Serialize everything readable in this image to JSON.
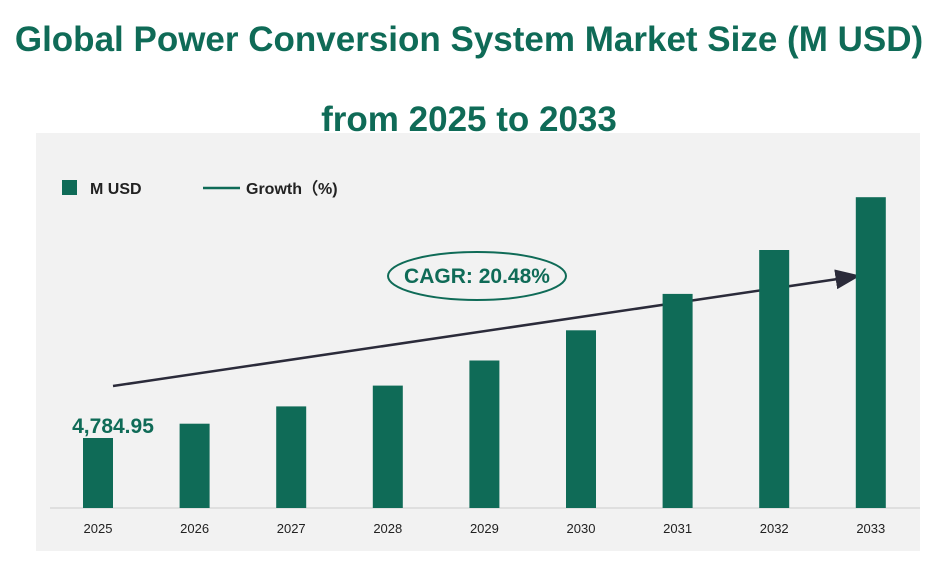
{
  "title": "Global Power Conversion System Market Size (M USD) from 2025 to 2033",
  "legend": {
    "bar_label": "M USD",
    "line_label": "Growth（%)"
  },
  "cagr_label": "CAGR:  20.48%",
  "first_value_label": "4,784.95",
  "colors": {
    "bar": "#0f6b57",
    "title": "#0f6b57",
    "arrow": "#2b2b3a",
    "panel": "#f2f2f2"
  },
  "chart_data": {
    "type": "bar",
    "categories": [
      "2025",
      "2026",
      "2027",
      "2028",
      "2029",
      "2030",
      "2031",
      "2032",
      "2033"
    ],
    "series": [
      {
        "name": "M USD",
        "values": [
          4784.95,
          5765,
          6946,
          8368,
          10082,
          12147,
          14635,
          17633,
          21245
        ]
      }
    ],
    "cagr_percent": 20.48,
    "legend_placement": "top-left",
    "grid": false
  }
}
